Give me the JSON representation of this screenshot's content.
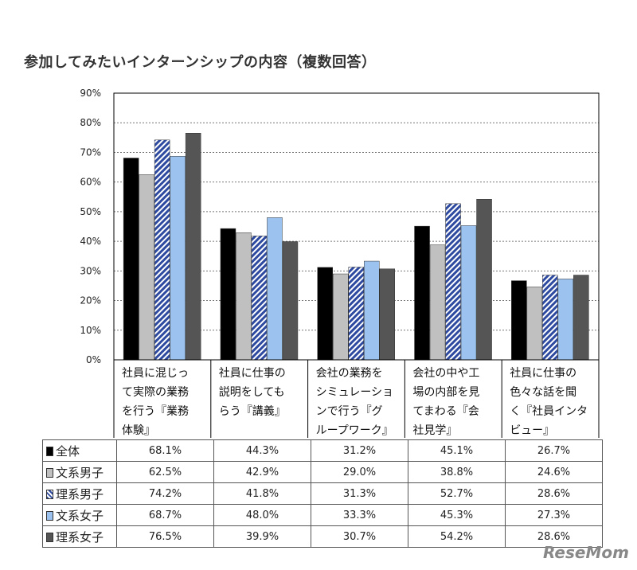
{
  "title": "参加してみたいインターンシップの内容（複数回答）",
  "watermark": "ReseMom",
  "chart_data": {
    "type": "bar",
    "title": "参加してみたいインターンシップの内容（複数回答）",
    "categories": [
      "社員に混じって実際の業務を行う『業務体験』",
      "社員に仕事の説明をしてもらう『講義』",
      "会社の業務をシミュレーションで行う『グループワーク』",
      "会社の中や工場の内部を見てまわる『会社見学』",
      "社員に仕事の色々な話を聞く『社員インタビュー』"
    ],
    "category_lines": [
      [
        "社員に混じっ",
        "て実際の業務",
        "を行う『業務",
        "体験』"
      ],
      [
        "社員に仕事の",
        "説明をしても",
        "らう『講義』"
      ],
      [
        "会社の業務を",
        "シミュレーショ",
        "ンで行う『グ",
        "ループワーク』"
      ],
      [
        "会社の中や工",
        "場の内部を見",
        "てまわる『会",
        "社見学』"
      ],
      [
        "社員に仕事の",
        "色々な話を聞",
        "く『社員インタ",
        "ビュー』"
      ]
    ],
    "yticks": [
      "0%",
      "10%",
      "20%",
      "30%",
      "40%",
      "50%",
      "60%",
      "70%",
      "80%",
      "90%"
    ],
    "ylim": [
      0,
      90
    ],
    "grid": true,
    "series": [
      {
        "name": "全体",
        "values": [
          68.1,
          44.3,
          31.2,
          45.1,
          26.7
        ],
        "labels": [
          "68.1%",
          "44.3%",
          "31.2%",
          "45.1%",
          "26.7%"
        ],
        "color": "#000000",
        "pattern": "solid"
      },
      {
        "name": "文系男子",
        "values": [
          62.5,
          42.9,
          29.0,
          38.8,
          24.6
        ],
        "labels": [
          "62.5%",
          "42.9%",
          "29.0%",
          "38.8%",
          "24.6%"
        ],
        "color": "#c0c0c0",
        "pattern": "solid"
      },
      {
        "name": "理系男子",
        "values": [
          74.2,
          41.8,
          31.3,
          52.7,
          28.6
        ],
        "labels": [
          "74.2%",
          "41.8%",
          "31.3%",
          "52.7%",
          "28.6%"
        ],
        "color": "#2e4aa0",
        "pattern": "hatch"
      },
      {
        "name": "文系女子",
        "values": [
          68.7,
          48.0,
          33.3,
          45.3,
          27.3
        ],
        "labels": [
          "68.7%",
          "48.0%",
          "33.3%",
          "45.3%",
          "27.3%"
        ],
        "color": "#9cc3f0",
        "pattern": "solid"
      },
      {
        "name": "理系女子",
        "values": [
          76.5,
          39.9,
          30.7,
          54.2,
          28.6
        ],
        "labels": [
          "76.5%",
          "39.9%",
          "30.7%",
          "54.2%",
          "28.6%"
        ],
        "color": "#555555",
        "pattern": "solid"
      }
    ]
  }
}
